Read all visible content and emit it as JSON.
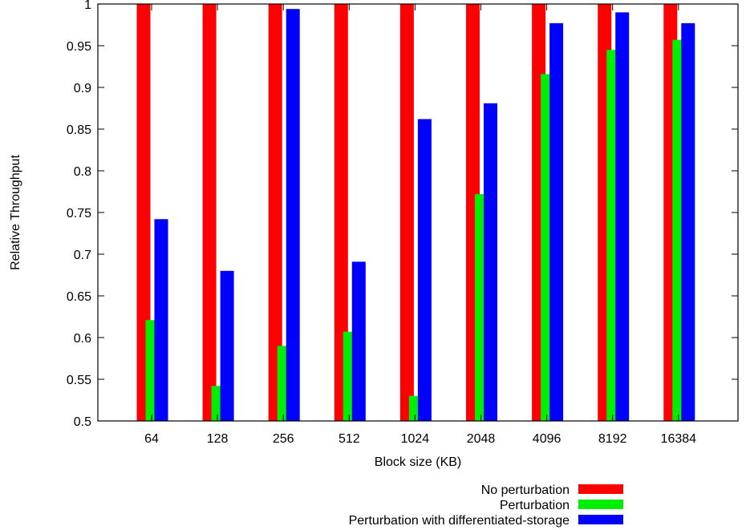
{
  "chart_data": {
    "type": "bar",
    "title": "",
    "xlabel": "Block size (KB)",
    "ylabel": "Relative Throughput",
    "ylim": [
      0.5,
      1.0
    ],
    "yticks": [
      "0.5",
      "0.55",
      "0.6",
      "0.65",
      "0.7",
      "0.75",
      "0.8",
      "0.85",
      "0.9",
      "0.95",
      "1"
    ],
    "categories": [
      "64",
      "128",
      "256",
      "512",
      "1024",
      "2048",
      "4096",
      "8192",
      "16384"
    ],
    "series": [
      {
        "name": "No perturbation",
        "color": "#ff0000",
        "values": [
          1.0,
          1.0,
          1.0,
          1.0,
          1.0,
          1.0,
          1.0,
          1.0,
          1.0
        ]
      },
      {
        "name": "Perturbation",
        "color": "#00ee00",
        "values": [
          0.621,
          0.542,
          0.59,
          0.607,
          0.53,
          0.772,
          0.916,
          0.945,
          0.957
        ]
      },
      {
        "name": "Perturbation with differentiated-storage",
        "color": "#0000ff",
        "values": [
          0.742,
          0.68,
          0.994,
          0.691,
          0.862,
          0.881,
          0.977,
          0.99,
          0.977
        ]
      }
    ],
    "legend_position": "bottom-right",
    "grid": false
  }
}
